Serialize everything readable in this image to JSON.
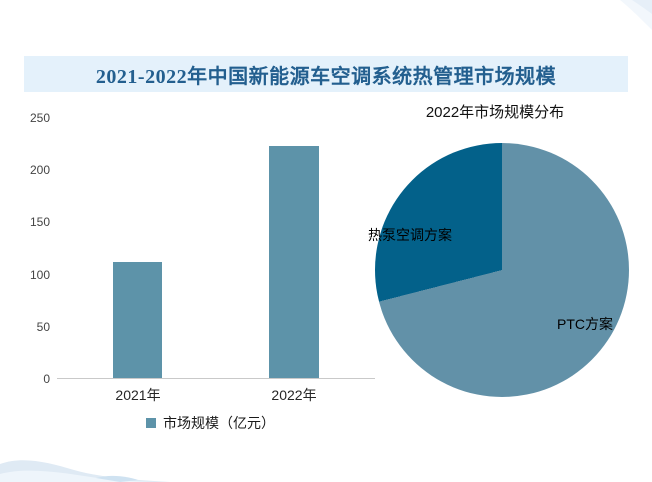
{
  "header": {
    "title": "2021-2022年中国新能源车空调系统热管理市场规模",
    "background": "#e4f1fb",
    "text_color": "#235f8f"
  },
  "chart_data": [
    {
      "type": "bar",
      "categories": [
        "2021年",
        "2022年"
      ],
      "values": [
        112,
        223
      ],
      "series_name": "市场规模（亿元）",
      "ylim": [
        0,
        250
      ],
      "yticks": [
        "250",
        "200",
        "150",
        "100",
        "50",
        "0"
      ],
      "bar_color": "#5d93a9",
      "axis_line_color": "#c9c9c9",
      "grid": false,
      "legend_position": "bottom"
    },
    {
      "type": "pie",
      "title": "2022年市场规模分布",
      "slices": [
        {
          "label": "PTC方案",
          "percent": 71,
          "color": "#6291a8"
        },
        {
          "label": "热泵空调方案",
          "percent": 29,
          "color": "#03618a"
        }
      ],
      "start_angle_deg": 0,
      "direction": "clockwise",
      "legend_position": "none"
    }
  ],
  "decor": {
    "flourish_color": "#dfeaf4",
    "flourish_accent": "#cfe2f1"
  }
}
